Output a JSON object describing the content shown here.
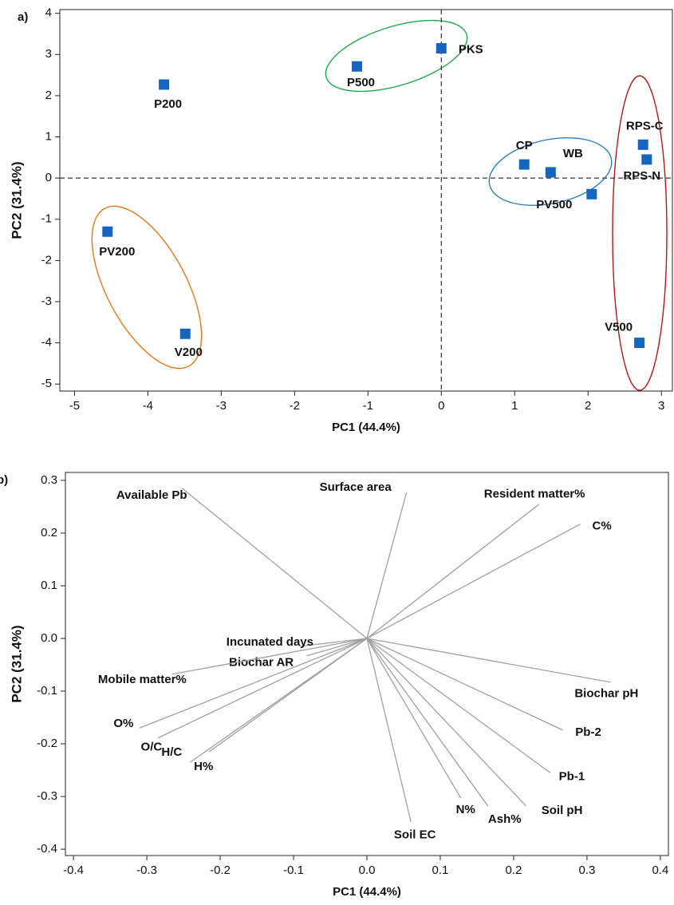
{
  "chart_data": [
    {
      "type": "scatter",
      "panel_label": "a)",
      "x_label": "PC1 (44.4%)",
      "y_label": "PC2 (31.4%)",
      "labels": [
        "P200",
        "P500",
        "PKS",
        "CP",
        "WB",
        "PV500",
        "RPS-C",
        "RPS-N",
        "V500",
        "PV200",
        "V200"
      ],
      "x": [
        -3.78,
        -1.15,
        0.0,
        1.13,
        1.49,
        2.05,
        2.75,
        2.8,
        2.7,
        -4.55,
        -3.49
      ],
      "values": [
        2.27,
        2.71,
        3.15,
        0.33,
        0.14,
        -0.39,
        0.81,
        0.45,
        -4.0,
        -1.3,
        -3.78
      ],
      "color": "#1565c0",
      "xlim": [
        -5.2,
        3.15
      ],
      "ylim": [
        -5.17,
        4.09
      ],
      "xticks": [
        -5,
        -4,
        -3,
        -2,
        -1,
        0,
        1,
        2,
        3
      ],
      "yticks": [
        -5,
        -4,
        -3,
        -2,
        -1,
        0,
        1,
        2,
        3,
        4
      ]
    },
    {
      "type": "loading",
      "panel_label": "b)",
      "x_label": "PC1 (44.4%)",
      "y_label": "PC2 (31.4%)",
      "labels": [
        "Available Pb",
        "Surface area",
        "Resident matter%",
        "C%",
        "Incunated days",
        "Biochar AR",
        "Mobile matter%",
        "O%",
        "O/C",
        "H/C",
        "H%",
        "Soil EC",
        "N%",
        "Ash%",
        "Soil pH",
        "Pb-1",
        "Pb-2",
        "Biochar pH"
      ],
      "x": [
        -0.252,
        0.054,
        0.235,
        0.291,
        -0.092,
        -0.082,
        -0.266,
        -0.31,
        -0.285,
        -0.241,
        -0.215,
        0.06,
        0.128,
        0.165,
        0.217,
        0.25,
        0.267,
        0.332
      ],
      "values": [
        0.285,
        0.277,
        0.255,
        0.217,
        -0.015,
        -0.033,
        -0.068,
        -0.17,
        -0.189,
        -0.235,
        -0.215,
        -0.348,
        -0.303,
        -0.318,
        -0.318,
        -0.255,
        -0.174,
        -0.083
      ],
      "color": "#a0a0a0",
      "xlim": [
        -0.411,
        0.411
      ],
      "ylim": [
        -0.412,
        0.315
      ],
      "xticks": [
        -0.4,
        -0.3,
        -0.2,
        -0.1,
        {
          "value": 0,
          "label": "0.0"
        },
        0.1,
        0.2,
        0.3,
        0.4
      ],
      "yticks": [
        -0.4,
        -0.3,
        -0.2,
        -0.1,
        {
          "value": 0,
          "label": "0.0"
        },
        0.1,
        0.2,
        0.3
      ]
    }
  ]
}
